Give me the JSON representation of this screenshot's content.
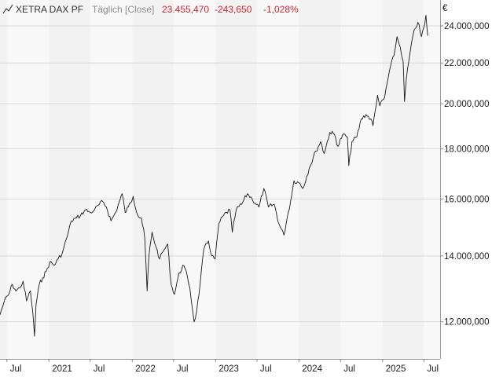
{
  "header": {
    "icon": "line-chart-icon",
    "instrument": "XETRA DAX PF",
    "interval": "Täglich [Close]",
    "last": "23.455,470",
    "change": "-243,650",
    "change_pct": "-1,028%",
    "change_color": "#d0262f",
    "label_color": "#333333",
    "muted_color": "#8c8c8c"
  },
  "chart_data": {
    "type": "line",
    "title": "",
    "xlabel": "",
    "ylabel": "€",
    "y_scale": "log",
    "ylim": [
      11000,
      25500
    ],
    "xlim": [
      "2020-06-01",
      "2025-09-10"
    ],
    "grid": true,
    "legend": "none",
    "line_color": "#1a1a1a",
    "y_ticks": [
      {
        "value": 12000,
        "label": "12.000,000"
      },
      {
        "value": 14000,
        "label": "14.000,000"
      },
      {
        "value": 16000,
        "label": "16.000,000"
      },
      {
        "value": 18000,
        "label": "18.000,000"
      },
      {
        "value": 20000,
        "label": "20.000,000"
      },
      {
        "value": 22000,
        "label": "22.000,000"
      },
      {
        "value": 24000,
        "label": "24.000,000"
      }
    ],
    "x_ticks": [
      {
        "date": "2020-07-01",
        "label": "Jul"
      },
      {
        "date": "2021-01-01",
        "label": "2021"
      },
      {
        "date": "2021-07-01",
        "label": "Jul"
      },
      {
        "date": "2022-01-01",
        "label": "2022"
      },
      {
        "date": "2022-07-01",
        "label": "Jul"
      },
      {
        "date": "2023-01-01",
        "label": "2023"
      },
      {
        "date": "2023-07-01",
        "label": "Jul"
      },
      {
        "date": "2024-01-01",
        "label": "2024"
      },
      {
        "date": "2024-07-01",
        "label": "Jul"
      },
      {
        "date": "2025-01-01",
        "label": "2025"
      },
      {
        "date": "2025-07-01",
        "label": "Jul"
      }
    ],
    "series": [
      {
        "values": [
          [
            "2020-06-01",
            12200
          ],
          [
            "2020-06-20",
            12600
          ],
          [
            "2020-07-10",
            12800
          ],
          [
            "2020-07-25",
            13100
          ],
          [
            "2020-08-10",
            12900
          ],
          [
            "2020-08-28",
            13000
          ],
          [
            "2020-09-10",
            13200
          ],
          [
            "2020-09-25",
            12600
          ],
          [
            "2020-10-12",
            12900
          ],
          [
            "2020-10-22",
            12300
          ],
          [
            "2020-10-30",
            11600
          ],
          [
            "2020-11-06",
            12500
          ],
          [
            "2020-11-20",
            13100
          ],
          [
            "2020-12-05",
            13300
          ],
          [
            "2020-12-20",
            13500
          ],
          [
            "2021-01-05",
            13800
          ],
          [
            "2021-01-25",
            13700
          ],
          [
            "2021-02-10",
            13900
          ],
          [
            "2021-03-01",
            14100
          ],
          [
            "2021-03-20",
            14600
          ],
          [
            "2021-04-10",
            15200
          ],
          [
            "2021-05-01",
            15300
          ],
          [
            "2021-05-20",
            15400
          ],
          [
            "2021-06-10",
            15600
          ],
          [
            "2021-07-01",
            15500
          ],
          [
            "2021-07-20",
            15600
          ],
          [
            "2021-08-10",
            15800
          ],
          [
            "2021-08-25",
            15900
          ],
          [
            "2021-09-10",
            15700
          ],
          [
            "2021-09-30",
            15200
          ],
          [
            "2021-10-20",
            15500
          ],
          [
            "2021-11-10",
            16000
          ],
          [
            "2021-11-18",
            16200
          ],
          [
            "2021-12-01",
            15500
          ],
          [
            "2021-12-15",
            15700
          ],
          [
            "2022-01-05",
            16100
          ],
          [
            "2022-01-25",
            15400
          ],
          [
            "2022-02-10",
            15300
          ],
          [
            "2022-02-25",
            14600
          ],
          [
            "2022-03-07",
            12900
          ],
          [
            "2022-03-15",
            14000
          ],
          [
            "2022-03-29",
            14800
          ],
          [
            "2022-04-15",
            14300
          ],
          [
            "2022-05-01",
            13900
          ],
          [
            "2022-05-20",
            14200
          ],
          [
            "2022-06-05",
            14400
          ],
          [
            "2022-06-20",
            13100
          ],
          [
            "2022-07-05",
            12800
          ],
          [
            "2022-07-20",
            13300
          ],
          [
            "2022-08-10",
            13700
          ],
          [
            "2022-08-20",
            13600
          ],
          [
            "2022-09-10",
            13000
          ],
          [
            "2022-09-29",
            12000
          ],
          [
            "2022-10-10",
            12300
          ],
          [
            "2022-10-25",
            13100
          ],
          [
            "2022-11-10",
            14200
          ],
          [
            "2022-12-01",
            14500
          ],
          [
            "2022-12-15",
            14000
          ],
          [
            "2022-12-30",
            13900
          ],
          [
            "2023-01-15",
            15100
          ],
          [
            "2023-02-05",
            15400
          ],
          [
            "2023-03-05",
            15600
          ],
          [
            "2023-03-15",
            14800
          ],
          [
            "2023-04-01",
            15600
          ],
          [
            "2023-04-25",
            15800
          ],
          [
            "2023-05-20",
            16200
          ],
          [
            "2023-06-10",
            16000
          ],
          [
            "2023-07-10",
            15700
          ],
          [
            "2023-07-31",
            16400
          ],
          [
            "2023-08-20",
            15700
          ],
          [
            "2023-09-15",
            15800
          ],
          [
            "2023-10-05",
            15100
          ],
          [
            "2023-10-27",
            14700
          ],
          [
            "2023-11-10",
            15300
          ],
          [
            "2023-11-25",
            15900
          ],
          [
            "2023-12-10",
            16700
          ],
          [
            "2024-01-05",
            16600
          ],
          [
            "2024-01-18",
            16400
          ],
          [
            "2024-02-15",
            17200
          ],
          [
            "2024-03-15",
            17900
          ],
          [
            "2024-04-05",
            18300
          ],
          [
            "2024-04-20",
            17800
          ],
          [
            "2024-05-15",
            18700
          ],
          [
            "2024-06-05",
            18600
          ],
          [
            "2024-06-20",
            18100
          ],
          [
            "2024-07-10",
            18600
          ],
          [
            "2024-07-31",
            18500
          ],
          [
            "2024-08-06",
            17300
          ],
          [
            "2024-08-20",
            18300
          ],
          [
            "2024-09-10",
            18500
          ],
          [
            "2024-09-30",
            19300
          ],
          [
            "2024-10-20",
            19500
          ],
          [
            "2024-11-10",
            19300
          ],
          [
            "2024-11-20",
            19000
          ],
          [
            "2024-12-10",
            20400
          ],
          [
            "2024-12-20",
            19900
          ],
          [
            "2025-01-10",
            20300
          ],
          [
            "2025-01-31",
            21600
          ],
          [
            "2025-02-20",
            22400
          ],
          [
            "2025-03-05",
            23400
          ],
          [
            "2025-03-20",
            22800
          ],
          [
            "2025-04-01",
            22100
          ],
          [
            "2025-04-07",
            20100
          ],
          [
            "2025-04-15",
            21200
          ],
          [
            "2025-05-01",
            22500
          ],
          [
            "2025-05-20",
            23800
          ],
          [
            "2025-06-05",
            24200
          ],
          [
            "2025-06-20",
            23400
          ],
          [
            "2025-07-05",
            24100
          ],
          [
            "2025-07-10",
            24600
          ],
          [
            "2025-07-18",
            23455
          ]
        ]
      }
    ]
  }
}
